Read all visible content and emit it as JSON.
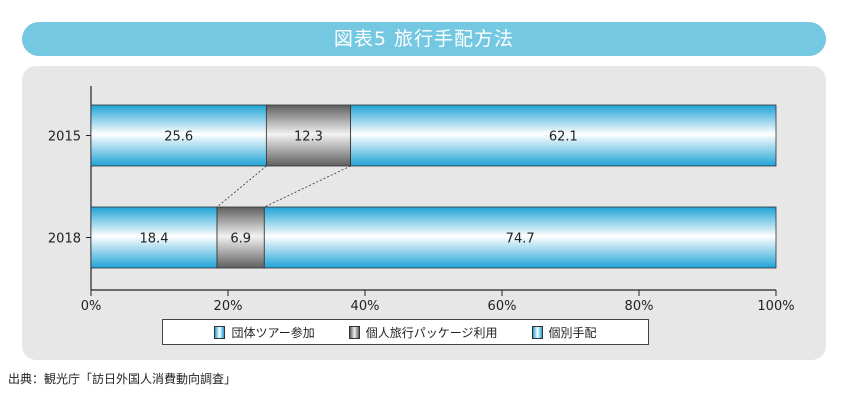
{
  "header": {
    "title": "図表5 旅行手配方法"
  },
  "source_note": "出典：観光庁「訪日外国人消費動向調査」",
  "legend": [
    {
      "label": "団体ツアー参加",
      "color": "#45b6de"
    },
    {
      "label": "個人旅行パッケージ利用",
      "color": "#8e8e8e"
    },
    {
      "label": "個別手配",
      "color": "#45b6de"
    }
  ],
  "chart_data": {
    "type": "bar",
    "orientation": "horizontal",
    "stacked": true,
    "categories": [
      "2015",
      "2018"
    ],
    "series": [
      {
        "name": "団体ツアー参加",
        "values": [
          25.6,
          18.4
        ]
      },
      {
        "name": "個人旅行パッケージ利用",
        "values": [
          12.3,
          6.9
        ]
      },
      {
        "name": "個別手配",
        "values": [
          62.1,
          74.7
        ]
      }
    ],
    "xlim": [
      0,
      100
    ],
    "x_tick_labels": [
      "0%",
      "20%",
      "40%",
      "60%",
      "80%",
      "100%"
    ],
    "legend_position": "bottom",
    "grid": false
  }
}
